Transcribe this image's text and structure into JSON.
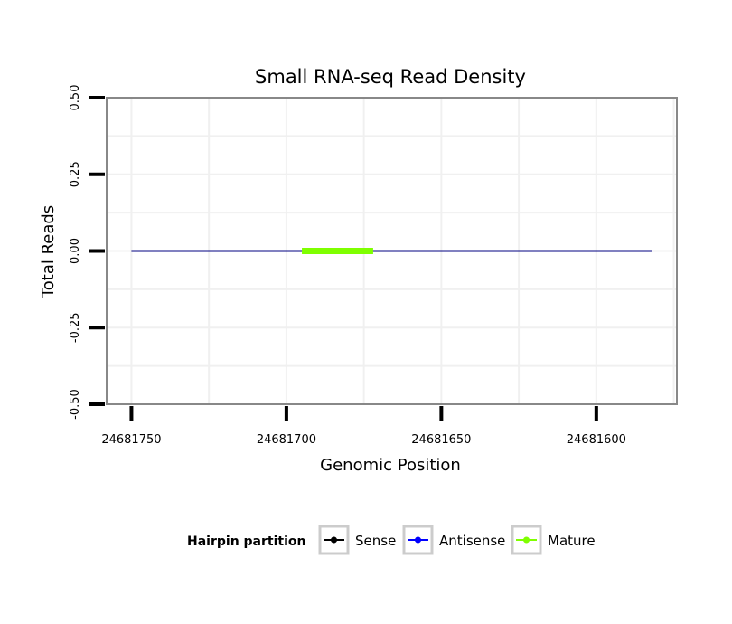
{
  "chart_data": {
    "type": "line",
    "title": "Small RNA-seq Read Density",
    "xlabel": "Genomic Position",
    "ylabel": "Total Reads",
    "xlim": [
      24681758,
      24681574
    ],
    "x_reversed": true,
    "ylim": [
      -0.5,
      0.5
    ],
    "x_ticks": [
      24681750,
      24681700,
      24681650,
      24681600
    ],
    "x_tick_labels": [
      "24681750",
      "24681700",
      "24681650",
      "24681600"
    ],
    "y_ticks": [
      0.5,
      0.25,
      0.0,
      -0.25,
      -0.5
    ],
    "y_tick_labels": [
      "0.50",
      "0.25",
      "0.00",
      "-0.25",
      "-0.50"
    ],
    "grid": true,
    "legend": {
      "title": "Hairpin partition",
      "position": "bottom",
      "entries": [
        {
          "label": "Sense",
          "color": "#000000"
        },
        {
          "label": "Antisense",
          "color": "#0000ff"
        },
        {
          "label": "Mature",
          "color": "#7fff00"
        }
      ]
    },
    "series": [
      {
        "name": "Sense",
        "color": "#000000",
        "x": [
          24681750,
          24681582
        ],
        "y": [
          0,
          0
        ]
      },
      {
        "name": "Antisense",
        "color": "#0000ff",
        "x": [
          24681750,
          24681582
        ],
        "y": [
          0,
          0
        ]
      },
      {
        "name": "Mature",
        "color": "#7fff00",
        "x": [
          24681695,
          24681672
        ],
        "y": [
          0,
          0
        ]
      }
    ]
  }
}
